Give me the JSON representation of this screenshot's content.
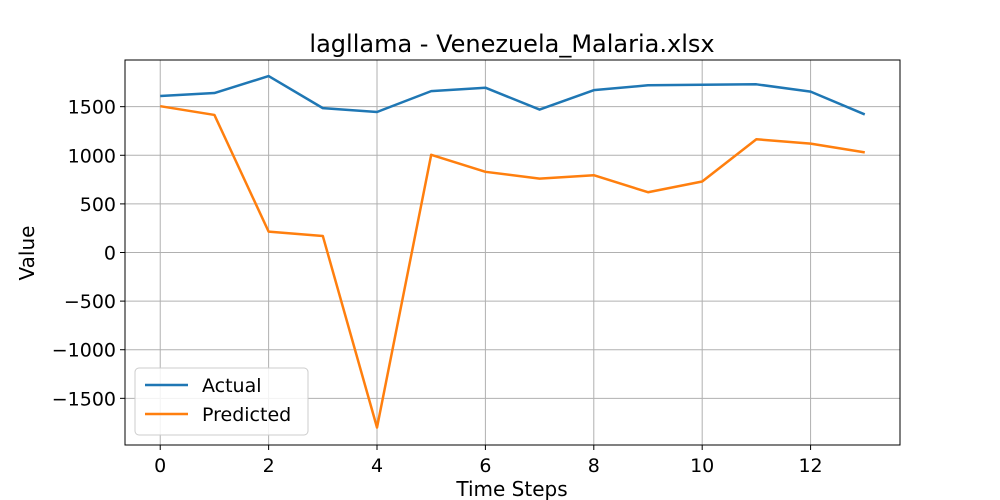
{
  "chart_data": {
    "type": "line",
    "title": "lagllama - Venezuela_Malaria.xlsx",
    "xlabel": "Time Steps",
    "ylabel": "Value",
    "x": [
      0,
      1,
      2,
      3,
      4,
      5,
      6,
      7,
      8,
      9,
      10,
      11,
      12,
      13
    ],
    "xlim": [
      -0.65,
      13.65
    ],
    "ylim": [
      -1980,
      1980
    ],
    "xticks": [
      0,
      2,
      4,
      6,
      8,
      10,
      12
    ],
    "yticks": [
      -1500,
      -1000,
      -500,
      0,
      500,
      1000,
      1500
    ],
    "xtick_labels": [
      "0",
      "2",
      "4",
      "6",
      "8",
      "10",
      "12"
    ],
    "ytick_labels": [
      "−1500",
      "−1000",
      "−500",
      "0",
      "500",
      "1000",
      "1500"
    ],
    "grid": true,
    "legend_position": "lower-left",
    "series": [
      {
        "name": "Actual",
        "color": "#1f77b4",
        "values": [
          1610,
          1640,
          1815,
          1485,
          1445,
          1660,
          1695,
          1470,
          1670,
          1720,
          1725,
          1730,
          1655,
          1420
        ]
      },
      {
        "name": "Predicted",
        "color": "#ff7f0e",
        "values": [
          1505,
          1415,
          215,
          170,
          -1800,
          1005,
          830,
          760,
          795,
          620,
          730,
          1165,
          1120,
          1030
        ]
      }
    ]
  }
}
